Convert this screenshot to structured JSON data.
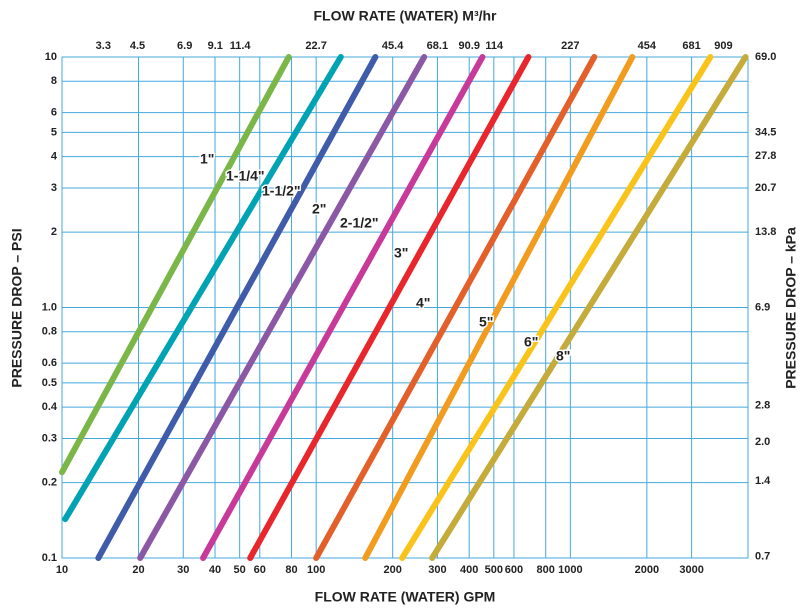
{
  "chart_data": {
    "type": "line",
    "log_x": true,
    "log_y": true,
    "grid": true,
    "grid_color": "#45a8dc",
    "xlabel": "FLOW RATE (WATER) GPM",
    "x2label": "FLOW RATE (WATER) M³/hr",
    "ylabel": "PRESSURE DROP – PSI",
    "y2label": "PRESSURE DROP – kPa",
    "xlim": [
      10,
      5000
    ],
    "xticks": [
      10,
      20,
      30,
      40,
      50,
      60,
      80,
      100,
      200,
      300,
      400,
      500,
      600,
      800,
      1000,
      2000,
      3000
    ],
    "x2lim": [
      2.27,
      1136
    ],
    "x2ticks": [
      3.3,
      4.5,
      6.9,
      9.1,
      11.4,
      22.7,
      45.4,
      68.1,
      90.9,
      114,
      227,
      454,
      681,
      909
    ],
    "ylim": [
      0.1,
      10
    ],
    "yticks": [
      0.1,
      0.2,
      0.3,
      0.4,
      0.5,
      0.6,
      0.8,
      {
        "value": 1,
        "label": "1.0"
      },
      2,
      3,
      4,
      5,
      6,
      8,
      10
    ],
    "y2lim": [
      0.69,
      69
    ],
    "y2ticks": [
      0.7,
      1.4,
      {
        "value": 2,
        "label": "2.0"
      },
      2.8,
      6.9,
      13.8,
      20.7,
      27.8,
      34.5,
      {
        "value": 69,
        "label": "69.0"
      }
    ],
    "series": [
      {
        "name": "1\"",
        "color": "#7ab648",
        "x": [
          10,
          78
        ],
        "values": [
          0.22,
          10
        ]
      },
      {
        "name": "1-1/4\"",
        "color": "#00a3b4",
        "x": [
          10.3,
          125
        ],
        "values": [
          0.143,
          10
        ]
      },
      {
        "name": "1-1/2\"",
        "color": "#3f5ba9",
        "x": [
          13.9,
          171
        ],
        "values": [
          0.1,
          10
        ]
      },
      {
        "name": "2\"",
        "color": "#8a58a5",
        "x": [
          20.3,
          266
        ],
        "values": [
          0.1,
          10
        ]
      },
      {
        "name": "2-1/2\"",
        "color": "#c83a9a",
        "x": [
          35.9,
          451
        ],
        "values": [
          0.1,
          10
        ]
      },
      {
        "name": "3\"",
        "color": "#e8262b",
        "x": [
          55,
          684
        ],
        "values": [
          0.1,
          10
        ]
      },
      {
        "name": "4\"",
        "color": "#e4602a",
        "x": [
          100,
          1242
        ],
        "values": [
          0.1,
          10
        ]
      },
      {
        "name": "5\"",
        "color": "#f29c1f",
        "x": [
          156,
          1754
        ],
        "values": [
          0.1,
          10
        ]
      },
      {
        "name": "6\"",
        "color": "#f9c31a",
        "x": [
          218,
          3556
        ],
        "values": [
          0.1,
          10
        ]
      },
      {
        "name": "8\"",
        "color": "#c4ab3a",
        "x": [
          286,
          4890
        ],
        "values": [
          0.1,
          10
        ]
      }
    ]
  }
}
